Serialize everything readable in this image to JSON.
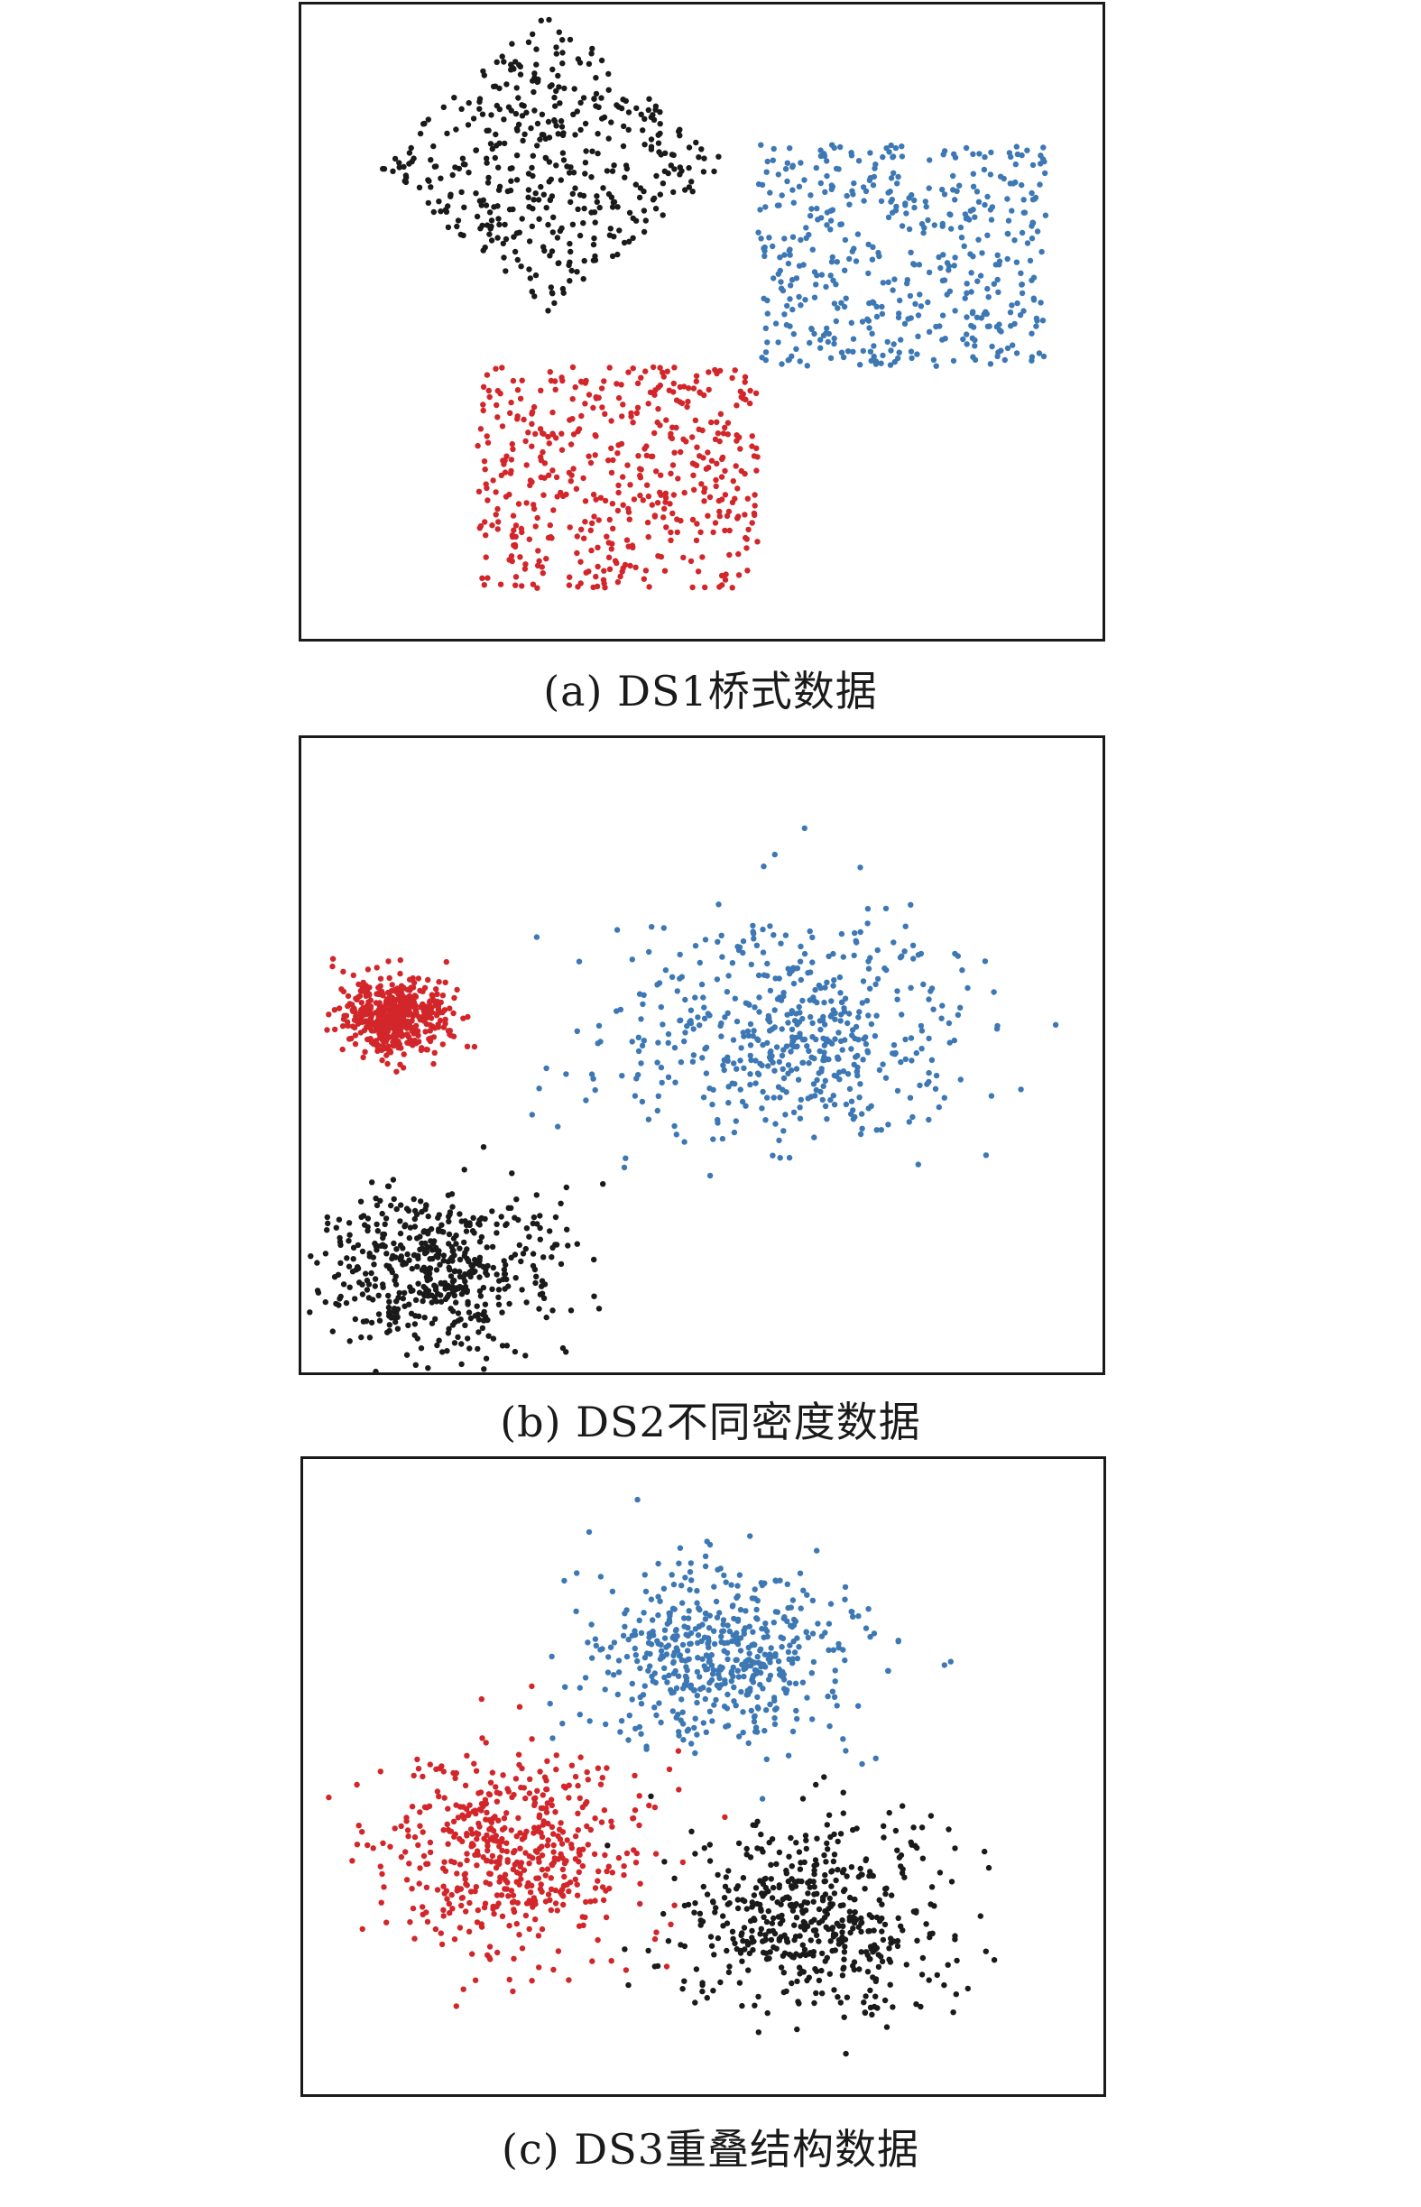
{
  "chart_data": [
    {
      "type": "scatter",
      "caption": "(a) DS1桥式数据",
      "colors": {
        "black": "#1a1a1a",
        "blue": "#3d78b4",
        "red": "#d2262a"
      },
      "xlim": [
        0,
        100
      ],
      "ylim": [
        0,
        100
      ],
      "axes_visible": false,
      "grid": false,
      "legend": "none",
      "clusters": [
        {
          "color": "black",
          "shape": "diamond",
          "center": [
            31,
            75
          ],
          "half_width": 22,
          "half_height": 24,
          "n": 430
        },
        {
          "color": "blue",
          "shape": "rectangle",
          "x_range": [
            57,
            93
          ],
          "y_range": [
            43,
            78
          ],
          "n": 470
        },
        {
          "color": "red",
          "shape": "rectangle",
          "x_range": [
            22,
            57
          ],
          "y_range": [
            8,
            43
          ],
          "n": 480
        }
      ]
    },
    {
      "type": "scatter",
      "caption": "(b) DS2不同密度数据",
      "colors": {
        "black": "#1a1a1a",
        "blue": "#3d78b4",
        "red": "#d2262a"
      },
      "xlim": [
        0,
        100
      ],
      "ylim": [
        0,
        100
      ],
      "axes_visible": false,
      "grid": false,
      "legend": "none",
      "clusters": [
        {
          "color": "red",
          "shape": "gaussian",
          "center": [
            12,
            56
          ],
          "sd": [
            3.5,
            3.0
          ],
          "n": 480
        },
        {
          "color": "blue",
          "shape": "gaussian",
          "center": [
            61,
            54
          ],
          "sd": [
            11,
            9.5
          ],
          "n": 520
        },
        {
          "color": "black",
          "shape": "gaussian",
          "center": [
            17,
            16
          ],
          "sd": [
            7.5,
            6.5
          ],
          "n": 520
        }
      ]
    },
    {
      "type": "scatter",
      "caption": "(c) DS3重叠结构数据",
      "colors": {
        "black": "#1a1a1a",
        "blue": "#3d78b4",
        "red": "#d2262a"
      },
      "xlim": [
        0,
        100
      ],
      "ylim": [
        0,
        100
      ],
      "axes_visible": false,
      "grid": false,
      "legend": "none",
      "clusters": [
        {
          "color": "blue",
          "shape": "gaussian",
          "center": [
            52,
            69
          ],
          "sd": [
            8.5,
            7.0
          ],
          "n": 520
        },
        {
          "color": "red",
          "shape": "gaussian",
          "center": [
            26,
            38
          ],
          "sd": [
            8.5,
            8.0
          ],
          "n": 520
        },
        {
          "color": "black",
          "shape": "gaussian",
          "center": [
            64,
            28
          ],
          "sd": [
            8.5,
            8.0
          ],
          "n": 520
        }
      ]
    }
  ]
}
